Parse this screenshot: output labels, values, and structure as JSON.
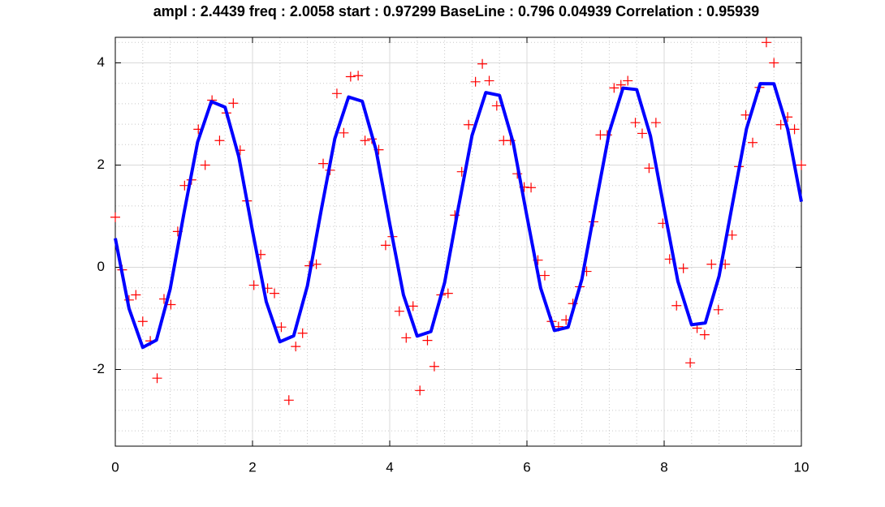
{
  "chart_data": {
    "type": "scatter",
    "title": "ampl : 2.4439   freq : 2.0058   start : 0.97299   BaseLine : 0.796  0.04939    Correlation : 0.95939",
    "xlim": [
      0,
      10
    ],
    "xticks": [
      0,
      2,
      4,
      6,
      8,
      10
    ],
    "ylim": [
      -3.5,
      4.5
    ],
    "yticks": [
      -2,
      0,
      2,
      4
    ],
    "xminorticks": [
      0.4,
      0.8,
      1.2,
      1.6,
      2.4,
      2.8,
      3.2,
      3.6,
      4.4,
      4.8,
      5.2,
      5.6,
      6.4,
      6.8,
      7.2,
      7.6,
      8.4,
      8.8,
      9.2,
      9.6
    ],
    "yminorticks": [
      -3.2,
      -2.8,
      -2.4,
      -1.6,
      -1.2,
      -0.8,
      -0.4,
      0.4,
      0.8,
      1.2,
      1.6,
      2.4,
      2.8,
      3.2,
      3.6,
      4.4
    ],
    "grid": true,
    "series": [
      {
        "type": "scatter",
        "color": "#ff0000",
        "x": [
          0,
          0.1,
          0.2,
          0.3,
          0.4,
          0.51,
          0.61,
          0.71,
          0.81,
          0.91,
          1.01,
          1.11,
          1.21,
          1.31,
          1.41,
          1.52,
          1.62,
          1.72,
          1.82,
          1.92,
          2.02,
          2.12,
          2.22,
          2.32,
          2.42,
          2.53,
          2.63,
          2.73,
          2.83,
          2.93,
          3.03,
          3.13,
          3.23,
          3.33,
          3.43,
          3.54,
          3.64,
          3.74,
          3.84,
          3.94,
          4.04,
          4.14,
          4.24,
          4.34,
          4.44,
          4.55,
          4.65,
          4.75,
          4.85,
          4.95,
          5.05,
          5.15,
          5.25,
          5.35,
          5.45,
          5.56,
          5.66,
          5.76,
          5.86,
          5.96,
          6.06,
          6.16,
          6.26,
          6.36,
          6.46,
          6.57,
          6.67,
          6.77,
          6.87,
          6.97,
          7.07,
          7.17,
          7.27,
          7.37,
          7.47,
          7.58,
          7.68,
          7.78,
          7.88,
          7.98,
          8.08,
          8.18,
          8.28,
          8.38,
          8.48,
          8.59,
          8.69,
          8.79,
          8.89,
          8.99,
          9.09,
          9.19,
          9.29,
          9.39,
          9.49,
          9.6,
          9.7,
          9.8,
          9.9,
          10
        ],
        "values": [
          0.98,
          -0.05,
          -0.64,
          -0.54,
          -1.06,
          -1.44,
          -2.17,
          -0.62,
          -0.73,
          0.7,
          1.6,
          1.71,
          2.7,
          2.0,
          3.27,
          2.48,
          3.02,
          3.21,
          2.29,
          1.3,
          -0.35,
          0.25,
          -0.41,
          -0.51,
          -1.17,
          -2.6,
          -1.55,
          -1.29,
          0.03,
          0.06,
          2.03,
          1.9,
          3.4,
          2.63,
          3.73,
          3.75,
          2.48,
          2.51,
          2.3,
          0.43,
          0.6,
          -0.86,
          -1.38,
          -0.76,
          -2.41,
          -1.43,
          -1.94,
          -0.54,
          -0.51,
          1.02,
          1.87,
          2.79,
          3.63,
          3.98,
          3.65,
          3.16,
          2.48,
          2.48,
          1.83,
          1.57,
          1.56,
          0.14,
          -0.16,
          -1.06,
          -1.16,
          -1.03,
          -0.71,
          -0.38,
          -0.08,
          0.89,
          2.59,
          2.59,
          3.51,
          3.57,
          3.65,
          2.83,
          2.62,
          1.94,
          2.83,
          0.86,
          0.16,
          -0.75,
          -0.02,
          -1.87,
          -1.19,
          -1.32,
          0.06,
          -0.83,
          0.06,
          0.63,
          1.97,
          2.98,
          2.44,
          3.52,
          4.4,
          4.0,
          2.79,
          2.94,
          2.7,
          2.0
        ]
      },
      {
        "type": "line",
        "color": "#0000ff",
        "x": [
          0,
          0.2,
          0.4,
          0.6,
          0.8,
          1,
          1.2,
          1.4,
          1.6,
          1.8,
          2,
          2.2,
          2.4,
          2.6,
          2.8,
          3,
          3.2,
          3.4,
          3.6,
          3.8,
          4,
          4.2,
          4.4,
          4.6,
          4.8,
          5,
          5.2,
          5.4,
          5.6,
          5.8,
          6,
          6.2,
          6.4,
          6.6,
          6.8,
          7,
          7.2,
          7.4,
          7.6,
          7.8,
          8,
          8.2,
          8.4,
          8.6,
          8.8,
          9,
          9.2,
          9.4,
          9.6,
          9.8,
          10
        ],
        "values": [
          0.568,
          -0.806,
          -1.567,
          -1.424,
          -0.425,
          1.052,
          2.45,
          3.243,
          3.133,
          2.165,
          0.711,
          -0.673,
          -1.458,
          -1.341,
          -0.363,
          1.107,
          2.517,
          3.332,
          3.248,
          2.301,
          0.854,
          -0.54,
          -1.347,
          -1.258,
          -0.301,
          1.162,
          2.581,
          3.419,
          3.364,
          2.438,
          0.997,
          -0.406,
          -1.236,
          -1.174,
          -0.239,
          1.217,
          2.645,
          3.507,
          3.477,
          2.573,
          1.141,
          -0.272,
          -1.124,
          -1.089,
          -0.176,
          1.272,
          2.709,
          3.593,
          3.591,
          2.708,
          1.284
        ]
      }
    ]
  }
}
